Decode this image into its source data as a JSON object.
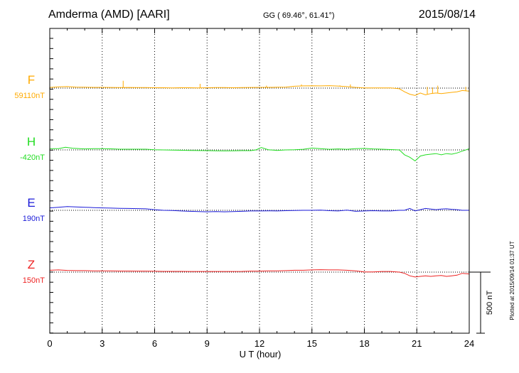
{
  "header": {
    "station": "Amderma (AMD)  [AARI]",
    "coords": "GG ( 69.46°,  61.41°)",
    "date": "2015/08/14"
  },
  "footer_note": "Plotted at 2015/09/14 01:37 UT",
  "chart_data": {
    "type": "line",
    "xlabel": "U T (hour)",
    "xlim": [
      0,
      24
    ],
    "xticks": [
      "0",
      "3",
      "6",
      "9",
      "12",
      "15",
      "18",
      "21",
      "24"
    ],
    "scale_bar_label": "500 nT",
    "series": [
      {
        "name": "F",
        "baseline_label": "59110nT",
        "color": "#FFAA00",
        "x": [
          0,
          0.5,
          1,
          1.5,
          2,
          2.5,
          3,
          3.5,
          4,
          4.5,
          5,
          5.5,
          6,
          6.5,
          7,
          7.5,
          8,
          8.5,
          9,
          9.5,
          10,
          10.5,
          11,
          11.5,
          12,
          12.5,
          13,
          13.5,
          14,
          14.5,
          15,
          15.5,
          16,
          16.5,
          17,
          17.5,
          18,
          18.5,
          19,
          19.5,
          20,
          20.3,
          20.6,
          20.9,
          21.2,
          21.5,
          21.8,
          22.1,
          22.4,
          22.7,
          23,
          23.3,
          23.6,
          24
        ],
        "values": [
          5,
          10,
          12,
          8,
          7,
          6,
          6,
          5,
          4,
          5,
          4,
          4,
          3,
          3,
          2,
          3,
          3,
          2,
          3,
          4,
          4,
          3,
          4,
          5,
          6,
          6,
          7,
          8,
          15,
          18,
          19,
          18,
          20,
          17,
          12,
          6,
          2,
          2,
          2,
          2,
          -5,
          -30,
          -50,
          -60,
          -40,
          -55,
          -45,
          -40,
          -45,
          -40,
          -35,
          -30,
          -20,
          -25
        ],
        "spikes": [
          {
            "x": 4.2,
            "value": 60
          },
          {
            "x": 8.6,
            "value": 35
          },
          {
            "x": 12.4,
            "value": 20
          },
          {
            "x": 14.4,
            "value": 30
          },
          {
            "x": 16.6,
            "value": 22
          },
          {
            "x": 17.2,
            "value": 30
          },
          {
            "x": 21.6,
            "value": 10
          },
          {
            "x": 21.9,
            "value": 5
          },
          {
            "x": 22.2,
            "value": 20
          },
          {
            "x": 23.8,
            "value": 10
          }
        ]
      },
      {
        "name": "H",
        "baseline_label": "-420nT",
        "color": "#22DD22",
        "x": [
          0,
          0.5,
          0.9,
          1.3,
          2,
          2.5,
          3,
          3.5,
          4,
          4.5,
          5,
          5.5,
          6,
          6.5,
          7,
          7.5,
          8,
          8.5,
          9,
          9.5,
          10,
          10.5,
          11,
          11.5,
          11.8,
          12.1,
          12.5,
          13,
          13.5,
          14,
          14.5,
          15,
          15.5,
          16,
          16.5,
          17,
          17.5,
          18,
          18.5,
          19,
          19.5,
          20,
          20.3,
          20.6,
          20.9,
          21.2,
          21.5,
          21.8,
          22.1,
          22.4,
          22.7,
          23,
          23.3,
          23.6,
          24
        ],
        "values": [
          10,
          10,
          22,
          14,
          8,
          10,
          10,
          9,
          6,
          6,
          6,
          6,
          2,
          0,
          -2,
          -3,
          -4,
          -5,
          -6,
          -7,
          -8,
          -7,
          -6,
          -6,
          0,
          20,
          2,
          -4,
          0,
          2,
          5,
          15,
          10,
          5,
          8,
          5,
          10,
          12,
          8,
          6,
          3,
          0,
          -40,
          -60,
          -90,
          -50,
          -40,
          -35,
          -30,
          -40,
          -30,
          -35,
          -25,
          -10,
          10
        ],
        "spikes": []
      },
      {
        "name": "E",
        "baseline_label": "190nT",
        "color": "#1A1AD8",
        "x": [
          0,
          0.5,
          1,
          1.5,
          2,
          2.5,
          3,
          3.5,
          4,
          4.5,
          5,
          5.5,
          6,
          6.5,
          7,
          7.5,
          8,
          8.5,
          9,
          9.5,
          10,
          10.5,
          11,
          11.5,
          12,
          12.5,
          13,
          13.5,
          14,
          14.5,
          15,
          15.5,
          16,
          16.5,
          17,
          17.5,
          18,
          18.5,
          19,
          19.5,
          20,
          20.3,
          20.6,
          20.9,
          21.2,
          21.5,
          21.8,
          22.1,
          22.4,
          22.7,
          23,
          23.3,
          23.6,
          24
        ],
        "values": [
          20,
          25,
          30,
          28,
          25,
          22,
          20,
          18,
          16,
          15,
          14,
          12,
          5,
          0,
          -2,
          -5,
          -8,
          -10,
          -12,
          -10,
          -12,
          -10,
          -8,
          -5,
          -5,
          -4,
          -5,
          -3,
          -2,
          0,
          0,
          2,
          -3,
          -5,
          2,
          -8,
          -5,
          -3,
          -5,
          -5,
          0,
          0,
          15,
          -5,
          5,
          15,
          10,
          5,
          10,
          12,
          8,
          5,
          0,
          0
        ],
        "spikes": []
      },
      {
        "name": "Z",
        "baseline_label": "150nT",
        "color": "#EE2222",
        "x": [
          0,
          0.5,
          1,
          1.5,
          2,
          2.5,
          3,
          3.5,
          4,
          4.5,
          5,
          5.5,
          6,
          6.5,
          7,
          7.5,
          8,
          8.5,
          9,
          9.5,
          10,
          10.5,
          11,
          11.5,
          12,
          12.5,
          13,
          13.5,
          14,
          14.5,
          15,
          15.5,
          16,
          16.5,
          17,
          17.5,
          18,
          18.5,
          19,
          19.5,
          20,
          20.3,
          20.6,
          20.9,
          21.2,
          21.5,
          21.8,
          22.1,
          22.4,
          22.7,
          23,
          23.3,
          23.6,
          24
        ],
        "values": [
          15,
          18,
          14,
          12,
          12,
          10,
          10,
          10,
          9,
          9,
          8,
          8,
          7,
          6,
          6,
          6,
          5,
          5,
          5,
          5,
          5,
          5,
          6,
          8,
          8,
          10,
          10,
          12,
          15,
          15,
          18,
          20,
          18,
          18,
          15,
          10,
          2,
          2,
          5,
          5,
          0,
          -10,
          -30,
          -40,
          -35,
          -30,
          -35,
          -30,
          -28,
          -35,
          -30,
          -25,
          -10,
          -15
        ],
        "spikes": []
      }
    ]
  }
}
